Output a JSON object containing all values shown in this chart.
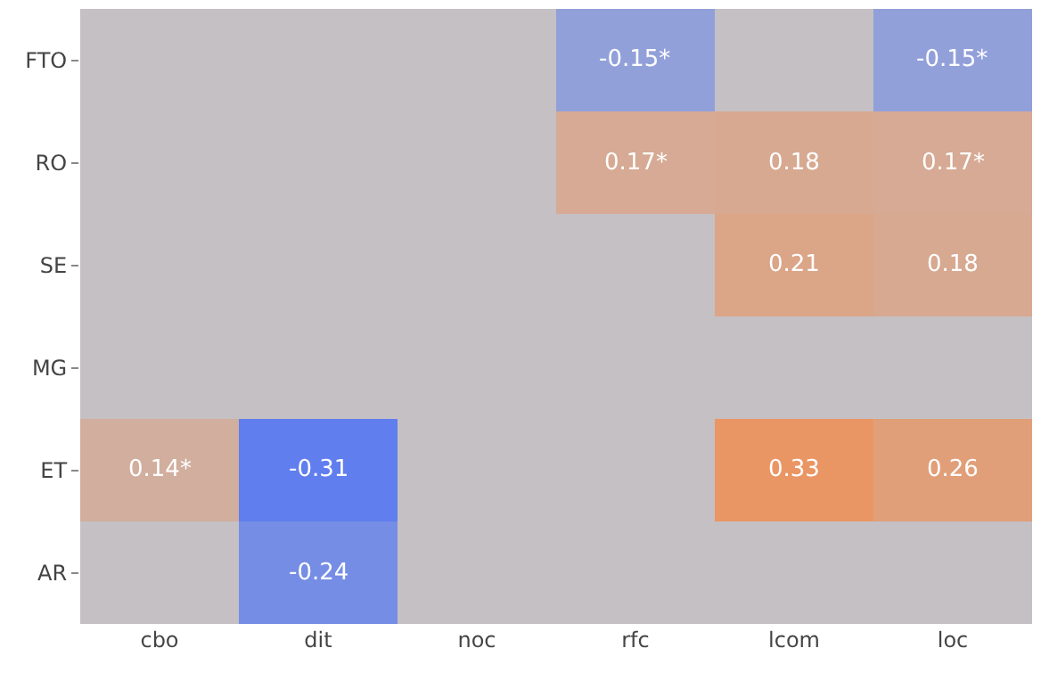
{
  "chart_data": {
    "type": "heatmap",
    "categories": [
      "cbo",
      "dit",
      "noc",
      "rfc",
      "lcom",
      "loc"
    ],
    "y_categories": [
      "FTO",
      "RO",
      "SE",
      "MG",
      "ET",
      "AR"
    ],
    "cells": [
      [
        null,
        null,
        null,
        -0.15,
        null,
        -0.15
      ],
      [
        null,
        null,
        null,
        0.17,
        0.18,
        0.17
      ],
      [
        null,
        null,
        null,
        null,
        0.21,
        0.18
      ],
      [
        null,
        null,
        null,
        null,
        null,
        null
      ],
      [
        0.14,
        -0.31,
        null,
        null,
        0.33,
        0.26
      ],
      [
        null,
        -0.24,
        null,
        null,
        null,
        null
      ]
    ],
    "cell_labels": [
      [
        null,
        null,
        null,
        "-0.15*",
        null,
        "-0.15*"
      ],
      [
        null,
        null,
        null,
        "0.17*",
        "0.18",
        "0.17*"
      ],
      [
        null,
        null,
        null,
        null,
        "0.21",
        "0.18"
      ],
      [
        null,
        null,
        null,
        null,
        null,
        null
      ],
      [
        "0.14*",
        "-0.31",
        null,
        null,
        "0.33",
        "0.26"
      ],
      [
        null,
        "-0.24",
        null,
        null,
        null,
        null
      ]
    ]
  }
}
